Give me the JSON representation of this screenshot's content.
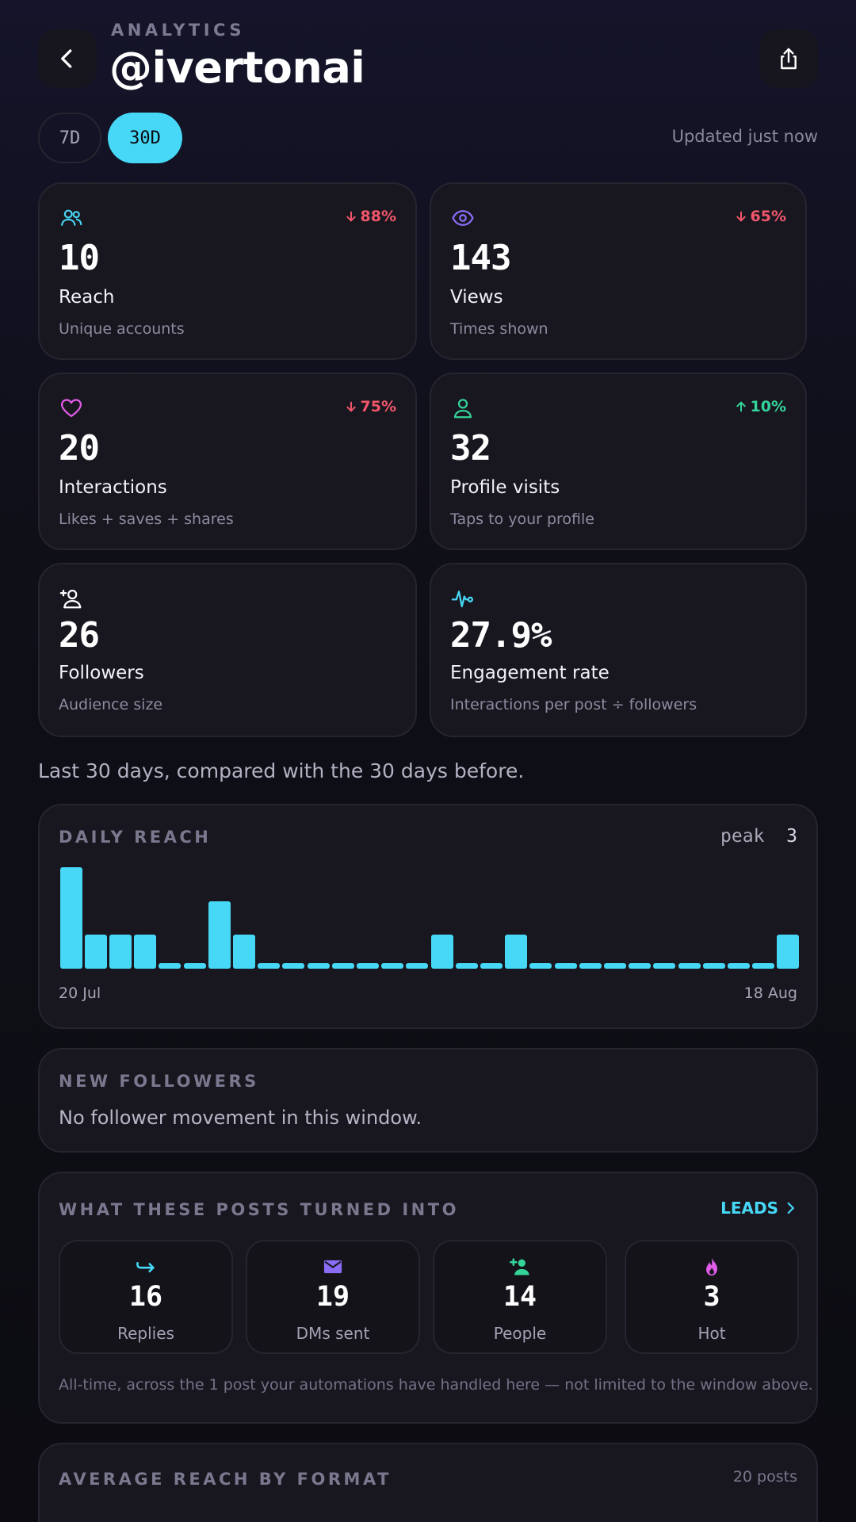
{
  "header": {
    "eyebrow": "ANALYTICS",
    "handle": "@ivertonai"
  },
  "range": {
    "options": [
      "7D",
      "30D"
    ],
    "selected": "30D",
    "updated": "Updated just now"
  },
  "stats": [
    {
      "icon": "users-icon",
      "value": "10",
      "label": "Reach",
      "sub": "Unique accounts",
      "delta": "88%",
      "direction": "down"
    },
    {
      "icon": "eye-icon",
      "value": "143",
      "label": "Views",
      "sub": "Times shown",
      "delta": "65%",
      "direction": "down"
    },
    {
      "icon": "heart-icon",
      "value": "20",
      "label": "Interactions",
      "sub": "Likes + saves + shares",
      "delta": "75%",
      "direction": "down"
    },
    {
      "icon": "user-icon",
      "value": "32",
      "label": "Profile visits",
      "sub": "Taps to your profile",
      "delta": "10%",
      "direction": "up"
    },
    {
      "icon": "user-plus-icon",
      "value": "26",
      "label": "Followers",
      "sub": "Audience size"
    },
    {
      "icon": "activity-icon",
      "value": "27.9%",
      "label": "Engagement rate",
      "sub": "Interactions per post ÷ followers"
    }
  ],
  "caption": "Last 30 days, compared with the 30 days before.",
  "daily_reach": {
    "title": "DAILY REACH",
    "peak_label": "peak",
    "peak_value": "3",
    "start_label": "20 Jul",
    "end_label": "18 Aug"
  },
  "chart_data": {
    "type": "bar",
    "title": "DAILY REACH",
    "x_range": [
      "20 Jul",
      "18 Aug"
    ],
    "values": [
      3,
      1,
      1,
      1,
      0,
      0,
      2,
      1,
      0,
      0,
      0,
      0,
      0,
      0,
      0,
      1,
      0,
      0,
      1,
      0,
      0,
      0,
      0,
      0,
      0,
      0,
      0,
      0,
      0,
      1
    ],
    "ylim": [
      0,
      3
    ]
  },
  "new_followers": {
    "title": "NEW FOLLOWERS",
    "text": "No follower movement in this window."
  },
  "outcomes": {
    "title": "WHAT THESE POSTS TURNED INTO",
    "link": "LEADS",
    "tiles": [
      {
        "icon": "reply-icon",
        "value": "16",
        "label": "Replies",
        "color": "#46d8f6"
      },
      {
        "icon": "mail-icon",
        "value": "19",
        "label": "DMs sent",
        "color": "#8b6cf6"
      },
      {
        "icon": "person-add-icon",
        "value": "14",
        "label": "People",
        "color": "#34d399"
      },
      {
        "icon": "flame-icon",
        "value": "3",
        "label": "Hot",
        "color": "#e05ce8"
      }
    ],
    "note": "All-time, across the 1 post your automations have handled here — not limited to the window above."
  },
  "format": {
    "title": "AVERAGE REACH BY FORMAT",
    "count": "20 posts"
  },
  "colors": {
    "accent": "#46d8f6",
    "down": "#f0566b",
    "up": "#34d399",
    "card_bg": "#18171f"
  }
}
